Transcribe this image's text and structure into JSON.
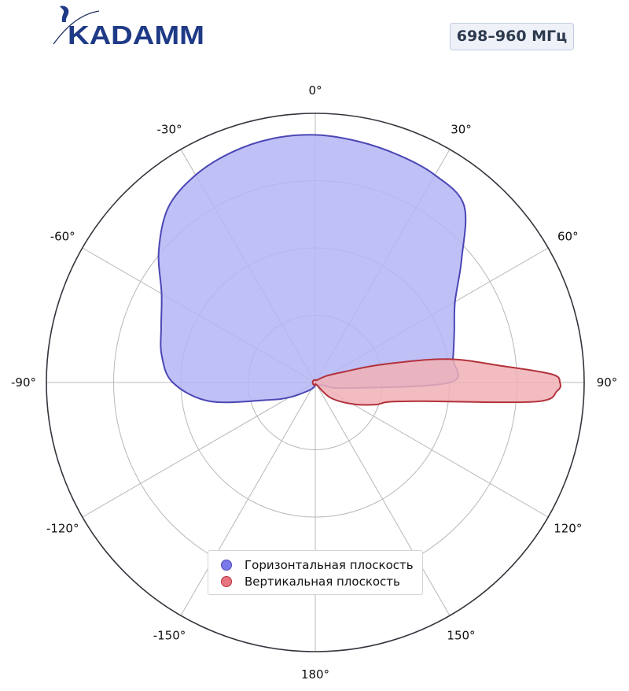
{
  "brand": {
    "name": "KADAMM"
  },
  "header": {
    "frequency_badge": "698–960 МГц"
  },
  "legend": {
    "items": [
      {
        "label": "Горизонтальная плоскость",
        "color": "#7b79ea",
        "edge": "#4b46b4"
      },
      {
        "label": "Вертикальная плоскость",
        "color": "#e7747e",
        "edge": "#b2323c"
      }
    ]
  },
  "chart_data": {
    "type": "polar-area",
    "theta_zero": "top",
    "theta_direction": "clockwise",
    "angle_ticks": [
      0,
      30,
      60,
      90,
      120,
      150,
      180,
      -150,
      -120,
      -90,
      -60,
      -30
    ],
    "angle_tick_labels": [
      "0°",
      "30°",
      "60°",
      "90°",
      "120°",
      "150°",
      "180°",
      "-150°",
      "-120°",
      "-90°",
      "-60°",
      "-30°"
    ],
    "radial_range": [
      0,
      1
    ],
    "radial_gridlines": [
      0.25,
      0.5,
      0.75
    ],
    "grid": true,
    "legend_position": "bottom-center",
    "series": [
      {
        "name": "Горизонтальная плоскость",
        "fill": "#b4b5f5",
        "edge": "#4b46b4",
        "theta": [
          0,
          10,
          20,
          30,
          40,
          50,
          60,
          70,
          80,
          90,
          100,
          110,
          120,
          140,
          160,
          180,
          -160,
          -140,
          -120,
          -110,
          -100,
          -90,
          -80,
          -70,
          -60,
          -50,
          -40,
          -30,
          -20,
          -10
        ],
        "r": [
          0.92,
          0.91,
          0.9,
          0.89,
          0.86,
          0.71,
          0.6,
          0.55,
          0.52,
          0.5,
          0.12,
          0.03,
          0.02,
          0.01,
          0.01,
          0.01,
          0.02,
          0.04,
          0.11,
          0.19,
          0.4,
          0.53,
          0.58,
          0.61,
          0.66,
          0.76,
          0.85,
          0.89,
          0.91,
          0.92
        ]
      },
      {
        "name": "Вертикальная плоскость",
        "fill": "#f0b0b6",
        "edge": "#b2323c",
        "theta": [
          0,
          30,
          60,
          70,
          75,
          80,
          85,
          88,
          90,
          92,
          95,
          100,
          105,
          110,
          120,
          135,
          150,
          180,
          -150,
          -120,
          -90,
          -60,
          -30
        ],
        "r": [
          0.01,
          0.01,
          0.05,
          0.12,
          0.26,
          0.5,
          0.7,
          0.88,
          0.91,
          0.9,
          0.82,
          0.4,
          0.28,
          0.24,
          0.16,
          0.08,
          0.01,
          0.01,
          0.01,
          0.01,
          0.01,
          0.01,
          0.01
        ]
      }
    ]
  }
}
